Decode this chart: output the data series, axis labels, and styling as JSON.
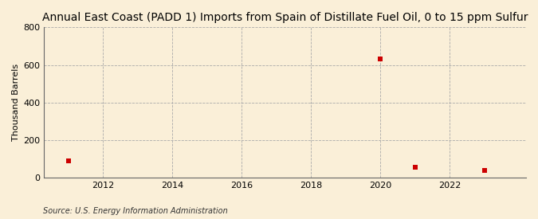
{
  "title": "Annual East Coast (PADD 1) Imports from Spain of Distillate Fuel Oil, 0 to 15 ppm Sulfur",
  "ylabel": "Thousand Barrels",
  "source": "Source: U.S. Energy Information Administration",
  "background_color": "#faefd8",
  "plot_bg_color": "#faefd8",
  "marker_color": "#cc0000",
  "marker_style": "s",
  "marker_size": 4,
  "x_data": [
    2011,
    2020,
    2021,
    2023
  ],
  "y_data": [
    90,
    630,
    55,
    40
  ],
  "xlim": [
    2010.3,
    2024.2
  ],
  "ylim": [
    0,
    800
  ],
  "yticks": [
    0,
    200,
    400,
    600,
    800
  ],
  "xticks": [
    2012,
    2014,
    2016,
    2018,
    2020,
    2022
  ],
  "grid_color": "#aaaaaa",
  "title_fontsize": 10,
  "label_fontsize": 8,
  "tick_fontsize": 8,
  "source_fontsize": 7
}
